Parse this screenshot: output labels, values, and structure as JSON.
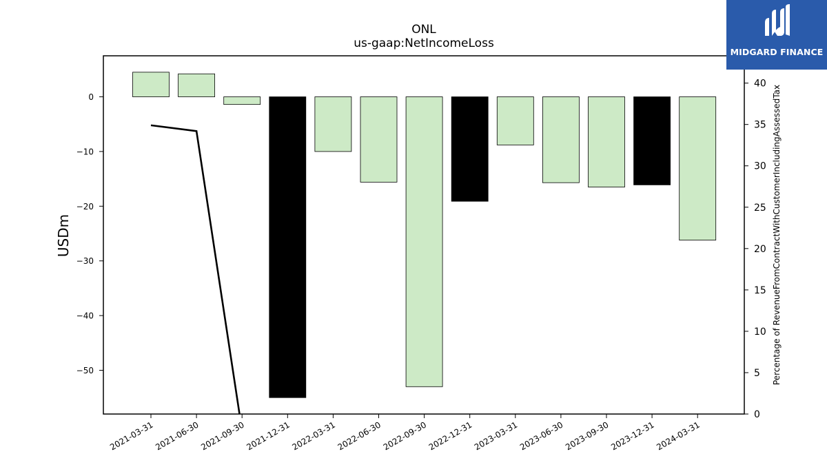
{
  "chart_data": {
    "type": "bar",
    "title": "ONL",
    "subtitle": "us-gaap:NetIncomeLoss",
    "ylabel": "USDm",
    "y2label": "Percentage of RevenueFromContractWithCustomerIncludingAssessedTax",
    "ylim": [
      -58,
      7.5
    ],
    "y2lim": [
      0,
      43.3
    ],
    "yticks": [
      0,
      -10,
      -20,
      -30,
      -40,
      -50
    ],
    "y2ticks": [
      0,
      5,
      10,
      15,
      20,
      25,
      30,
      35,
      40
    ],
    "categories": [
      "2021-03-31",
      "2021-06-30",
      "2021-09-30",
      "2021-12-31",
      "2022-03-31",
      "2022-06-30",
      "2022-09-30",
      "2022-12-31",
      "2023-03-31",
      "2023-06-30",
      "2023-09-30",
      "2023-12-31",
      "2024-03-31"
    ],
    "series": [
      {
        "type": "bar",
        "values": [
          4.5,
          4.2,
          -1.4,
          -55.0,
          -10.0,
          -15.6,
          -53.0,
          -19.1,
          -8.8,
          -15.7,
          -16.5,
          -16.1,
          -26.2
        ],
        "colors": [
          "#cdeac6",
          "#cdeac6",
          "#cdeac6",
          "#000000",
          "#cdeac6",
          "#cdeac6",
          "#cdeac6",
          "#000000",
          "#cdeac6",
          "#cdeac6",
          "#cdeac6",
          "#000000",
          "#cdeac6"
        ]
      },
      {
        "type": "line",
        "axis": "right",
        "x": [
          "2021-03-31",
          "2021-06-30",
          "2021-09-30"
        ],
        "values": [
          34.9,
          34.2,
          -2.0
        ],
        "color": "#000000"
      }
    ],
    "grid": false,
    "legend": "none"
  },
  "logo": {
    "text": "MIDGARD FINANCE",
    "bg": "#2a5bab"
  }
}
